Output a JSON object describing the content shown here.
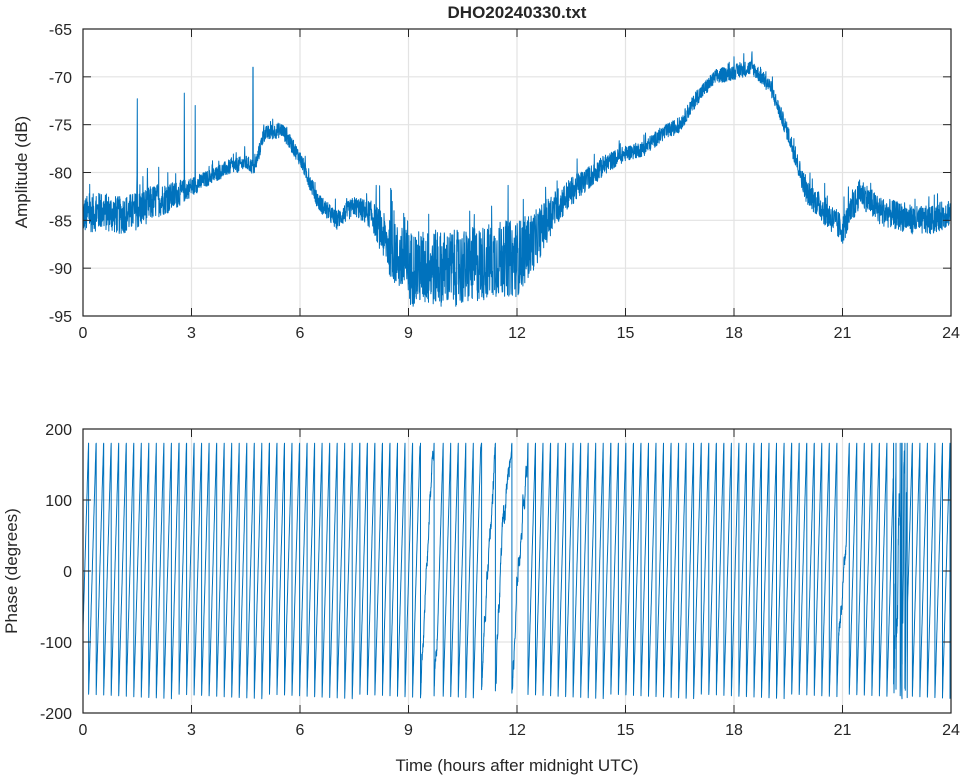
{
  "chart_data": [
    {
      "type": "line",
      "title": "DHO20240330.txt",
      "xlabel": "",
      "ylabel": "Amplitude (dB)",
      "xlim": [
        0,
        24
      ],
      "ylim": [
        -95,
        -65
      ],
      "xticks": [
        0,
        3,
        6,
        9,
        12,
        15,
        18,
        21,
        24
      ],
      "yticks": [
        -95,
        -90,
        -85,
        -80,
        -75,
        -70,
        -65
      ],
      "grid": true,
      "color": "#0072BD",
      "envelope_hours": [
        0,
        0.5,
        1,
        1.5,
        2,
        2.5,
        3,
        3.5,
        4,
        4.5,
        4.75,
        5,
        5.5,
        6,
        6.5,
        7,
        7.5,
        8,
        8.5,
        9,
        9.5,
        10,
        10.5,
        11,
        11.5,
        12,
        12.5,
        13,
        13.5,
        14,
        14.5,
        15,
        15.5,
        16,
        16.5,
        17,
        17.5,
        18,
        18.5,
        19,
        19.5,
        20,
        20.5,
        21,
        21.5,
        22,
        22.5,
        23,
        23.5,
        24
      ],
      "envelope_db": [
        -84.5,
        -84,
        -84.5,
        -84,
        -83,
        -82.5,
        -81.5,
        -80.5,
        -79.5,
        -79,
        -79.5,
        -76,
        -75.5,
        -78.5,
        -83,
        -85,
        -83.5,
        -84.5,
        -88,
        -90,
        -90,
        -90,
        -90,
        -89.5,
        -89,
        -89,
        -87,
        -84,
        -82,
        -80.5,
        -79,
        -78,
        -77.5,
        -76,
        -75,
        -72,
        -70,
        -69.5,
        -69,
        -71,
        -76,
        -82,
        -84,
        -86,
        -82,
        -84,
        -84.5,
        -85,
        -85,
        -84
      ],
      "noise_db": [
        2,
        2,
        2,
        2,
        1.8,
        1.5,
        1,
        0.8,
        0.8,
        0.8,
        0.8,
        0.8,
        0.8,
        0.8,
        0.9,
        1,
        1,
        1.5,
        3,
        4,
        4,
        4,
        4,
        4,
        4,
        4,
        3,
        2,
        1.5,
        1.2,
        1,
        0.8,
        0.8,
        0.8,
        0.8,
        0.8,
        0.8,
        0.8,
        0.8,
        0.8,
        0.9,
        1.2,
        1.5,
        1.5,
        1.5,
        1.5,
        1.5,
        1.5,
        1.5,
        1.5
      ],
      "spikes": [
        {
          "x": 1.5,
          "y": -72.3
        },
        {
          "x": 2.8,
          "y": -71.7
        },
        {
          "x": 3.1,
          "y": -73
        },
        {
          "x": 4.7,
          "y": -69
        }
      ]
    },
    {
      "type": "line",
      "title": "",
      "xlabel": "Time (hours after midnight UTC)",
      "ylabel": "Phase (degrees)",
      "xlim": [
        0,
        24
      ],
      "ylim": [
        -200,
        200
      ],
      "xticks": [
        0,
        3,
        6,
        9,
        12,
        15,
        18,
        21,
        24
      ],
      "yticks": [
        -200,
        -100,
        0,
        100,
        200
      ],
      "grid": true,
      "color": "#0072BD",
      "wrap_range": [
        -180,
        180
      ],
      "cycles_per_hour": 4.8,
      "disturbed_intervals": [
        {
          "from": 9.3,
          "to": 9.8
        },
        {
          "from": 11.0,
          "to": 12.3
        },
        {
          "from": 20.9,
          "to": 21.1
        },
        {
          "from": 22.4,
          "to": 22.8
        }
      ]
    }
  ]
}
